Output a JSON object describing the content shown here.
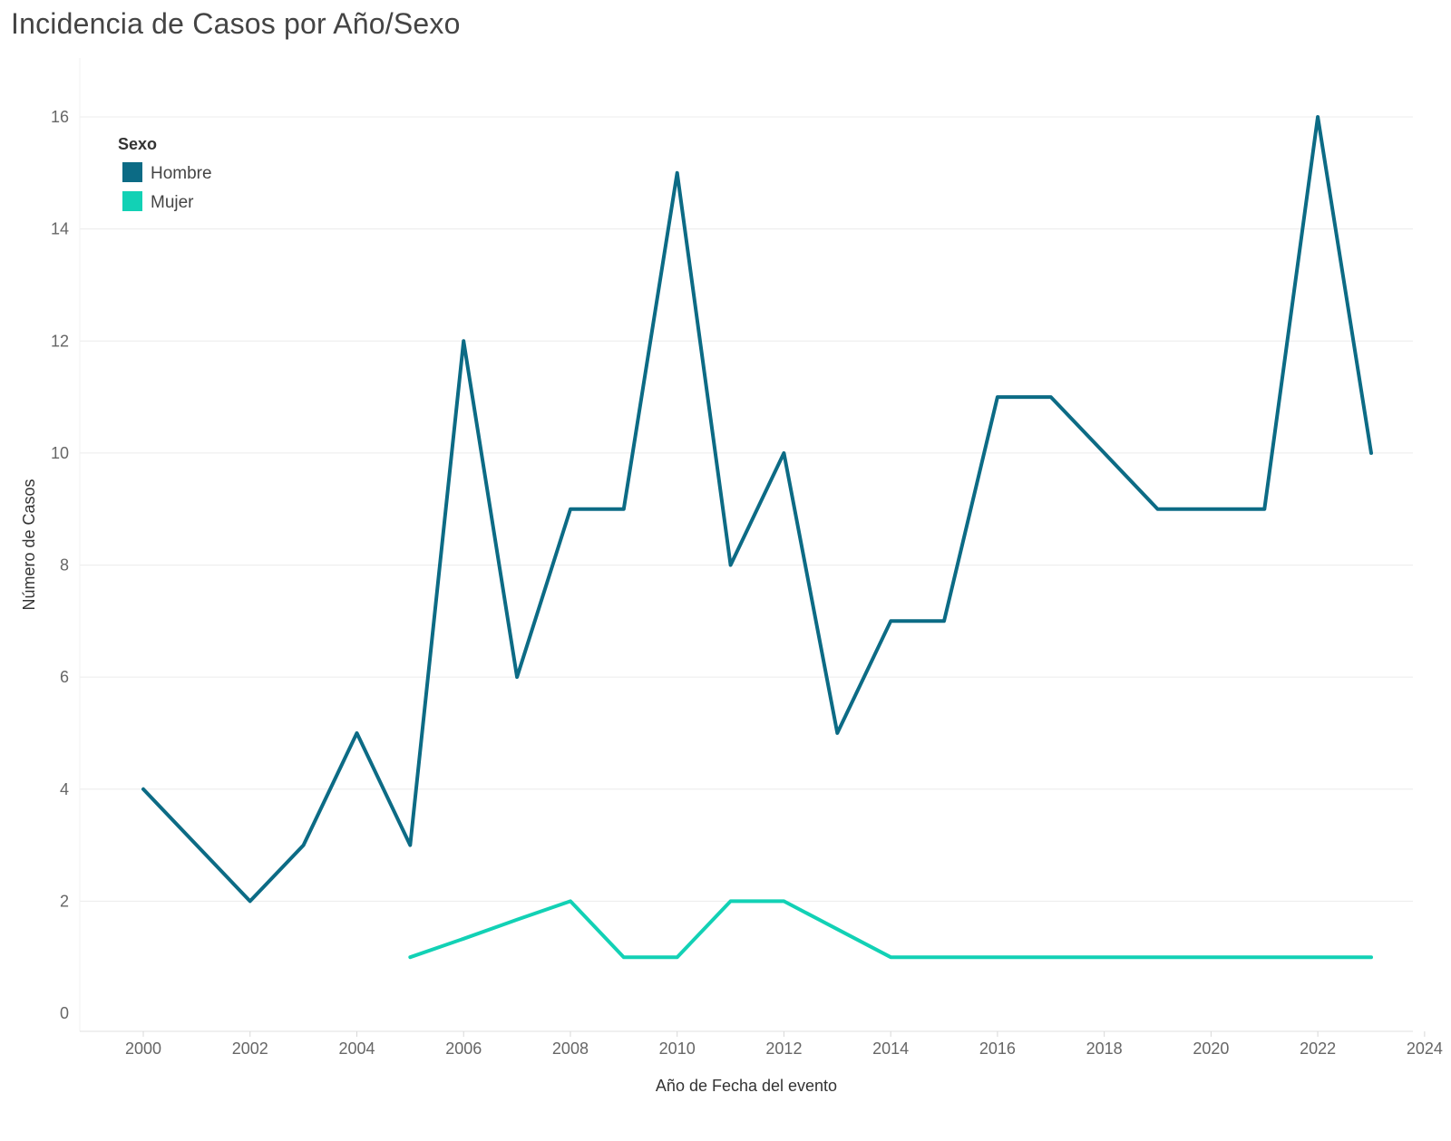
{
  "chart_data": {
    "type": "line",
    "title": "Incidencia de Casos por Año/Sexo",
    "xlabel": "Año de Fecha del evento",
    "ylabel": "Número de Casos",
    "xlim": [
      1999,
      2024
    ],
    "ylim": [
      0,
      17
    ],
    "x_ticks": [
      2000,
      2002,
      2004,
      2006,
      2008,
      2010,
      2012,
      2014,
      2016,
      2018,
      2020,
      2022,
      2024
    ],
    "y_ticks": [
      0,
      2,
      4,
      6,
      8,
      10,
      12,
      14,
      16
    ],
    "grid": true,
    "legend": {
      "title": "Sexo",
      "position": "top-left"
    },
    "series": [
      {
        "name": "Hombre",
        "color": "#0c6b85",
        "x": [
          2000,
          2001,
          2002,
          2003,
          2004,
          2005,
          2006,
          2007,
          2008,
          2009,
          2010,
          2011,
          2012,
          2013,
          2014,
          2015,
          2016,
          2017,
          2018,
          2019,
          2020,
          2021,
          2022,
          2023
        ],
        "values": [
          4,
          3,
          2,
          3,
          5,
          3,
          12,
          6,
          9,
          9,
          15,
          8,
          10,
          5,
          7,
          7,
          11,
          11,
          10,
          9,
          9,
          9,
          16,
          10
        ]
      },
      {
        "name": "Mujer",
        "color": "#12d1b5",
        "x": [
          2005,
          2006,
          2007,
          2008,
          2009,
          2010,
          2011,
          2012,
          2013,
          2014,
          2015,
          2016,
          2017,
          2018,
          2019,
          2020,
          2021,
          2022,
          2023
        ],
        "values": [
          1,
          1.33,
          1.67,
          2,
          1,
          1,
          2,
          2,
          1.5,
          1,
          1,
          1,
          1,
          1,
          1,
          1,
          1,
          1,
          1
        ]
      }
    ]
  }
}
